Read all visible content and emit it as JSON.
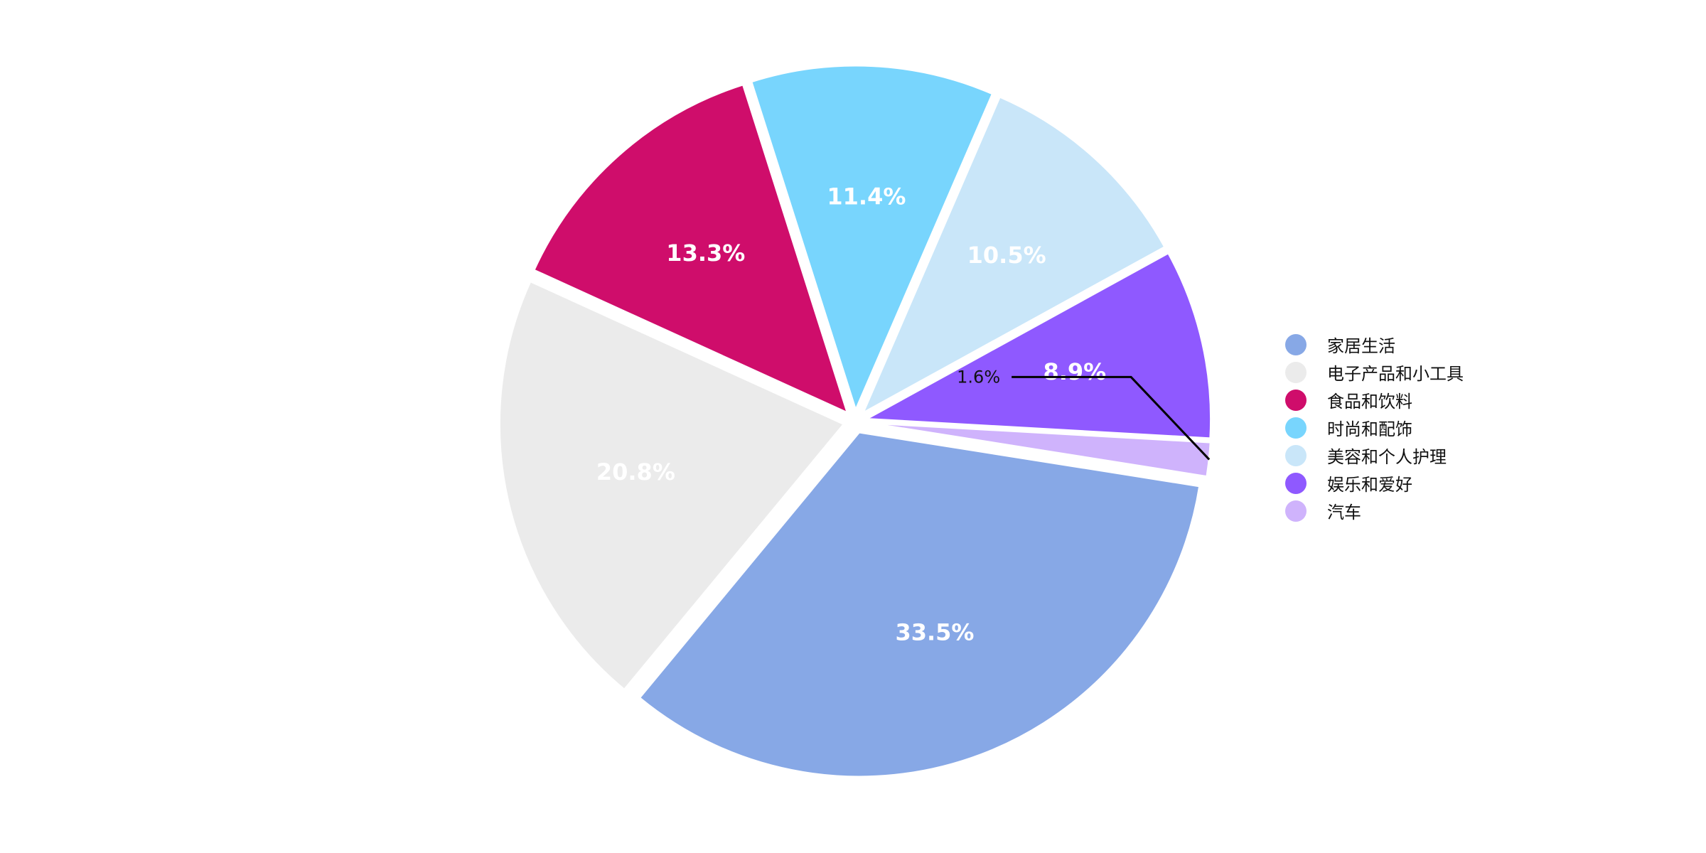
{
  "chart_data": {
    "type": "pie",
    "title": "",
    "legend_position": "right",
    "slices": [
      {
        "name": "家居生活",
        "value": 33.5,
        "label": "33.5%",
        "color": "#87A8E6"
      },
      {
        "name": "电子产品和小工具",
        "value": 20.8,
        "label": "20.8%",
        "color": "#EBEBEB"
      },
      {
        "name": "食品和饮料",
        "value": 13.3,
        "label": "13.3%",
        "color": "#CF0D6B"
      },
      {
        "name": "时尚和配饰",
        "value": 11.4,
        "label": "11.4%",
        "color": "#78D5FD"
      },
      {
        "name": "美容和个人护理",
        "value": 10.5,
        "label": "10.5%",
        "color": "#C9E6F9"
      },
      {
        "name": "娱乐和爱好",
        "value": 8.9,
        "label": "8.9%",
        "color": "#8F59FF"
      },
      {
        "name": "汽车",
        "value": 1.6,
        "label": "1.6%",
        "color": "#CFB3FC"
      }
    ]
  }
}
